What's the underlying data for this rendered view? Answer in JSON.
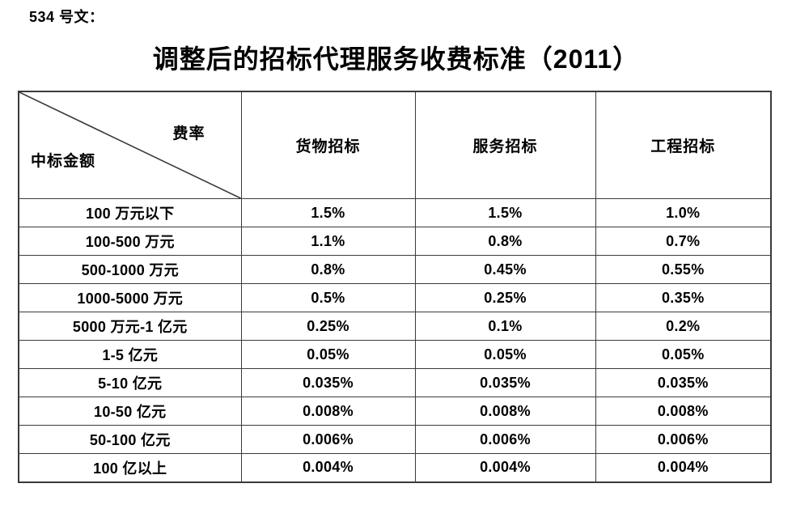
{
  "doc_label": "534 号文：",
  "title": "调整后的招标代理服务收费标准（2011）",
  "table": {
    "corner": {
      "top_right": "费率",
      "bottom_left": "中标金额"
    },
    "columns": [
      "货物招标",
      "服务招标",
      "工程招标"
    ],
    "rows": [
      {
        "amount": "100 万元以下",
        "rates": [
          "1.5%",
          "1.5%",
          "1.0%"
        ]
      },
      {
        "amount": "100-500 万元",
        "rates": [
          "1.1%",
          "0.8%",
          "0.7%"
        ]
      },
      {
        "amount": "500-1000 万元",
        "rates": [
          "0.8%",
          "0.45%",
          "0.55%"
        ]
      },
      {
        "amount": "1000-5000 万元",
        "rates": [
          "0.5%",
          "0.25%",
          "0.35%"
        ]
      },
      {
        "amount": "5000 万元-1 亿元",
        "rates": [
          "0.25%",
          "0.1%",
          "0.2%"
        ]
      },
      {
        "amount": "1-5 亿元",
        "rates": [
          "0.05%",
          "0.05%",
          "0.05%"
        ]
      },
      {
        "amount": "5-10 亿元",
        "rates": [
          "0.035%",
          "0.035%",
          "0.035%"
        ]
      },
      {
        "amount": "10-50 亿元",
        "rates": [
          "0.008%",
          "0.008%",
          "0.008%"
        ]
      },
      {
        "amount": "50-100 亿元",
        "rates": [
          "0.006%",
          "0.006%",
          "0.006%"
        ]
      },
      {
        "amount": "100 亿以上",
        "rates": [
          "0.004%",
          "0.004%",
          "0.004%"
        ]
      }
    ]
  },
  "colors": {
    "border": "#3a3a3a",
    "text": "#000000",
    "background": "#ffffff"
  }
}
